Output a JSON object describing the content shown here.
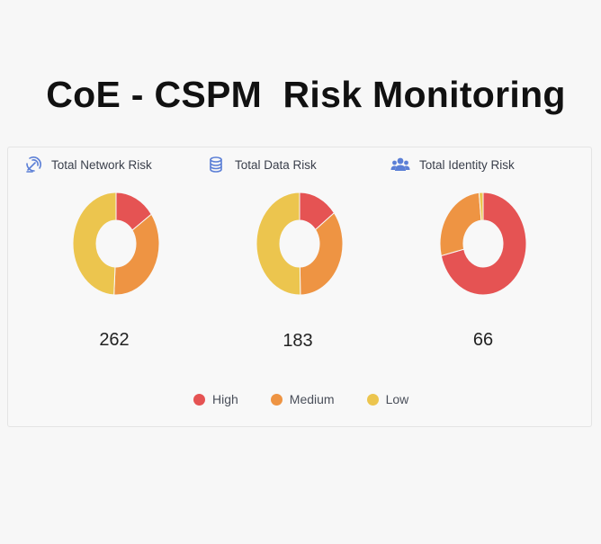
{
  "page": {
    "title": "CoE - CSPM  Risk Monitoring"
  },
  "colors": {
    "high": "#e55353",
    "medium": "#ee9443",
    "low": "#ecc54e"
  },
  "legend": {
    "high": "High",
    "medium": "Medium",
    "low": "Low"
  },
  "chart_data": [
    {
      "type": "pie",
      "title": "Total Network Risk",
      "icon": "network-satellite-icon",
      "total": "262",
      "categories": [
        "High",
        "Medium",
        "Low"
      ],
      "values": [
        40,
        93,
        129
      ]
    },
    {
      "type": "pie",
      "title": "Total Data Risk",
      "icon": "database-icon",
      "total": "183",
      "categories": [
        "High",
        "Medium",
        "Low"
      ],
      "values": [
        27,
        64,
        92
      ]
    },
    {
      "type": "pie",
      "title": "Total Identity Risk",
      "icon": "users-icon",
      "total": "66",
      "categories": [
        "High",
        "Medium",
        "Low"
      ],
      "values": [
        47,
        18,
        1
      ]
    }
  ]
}
